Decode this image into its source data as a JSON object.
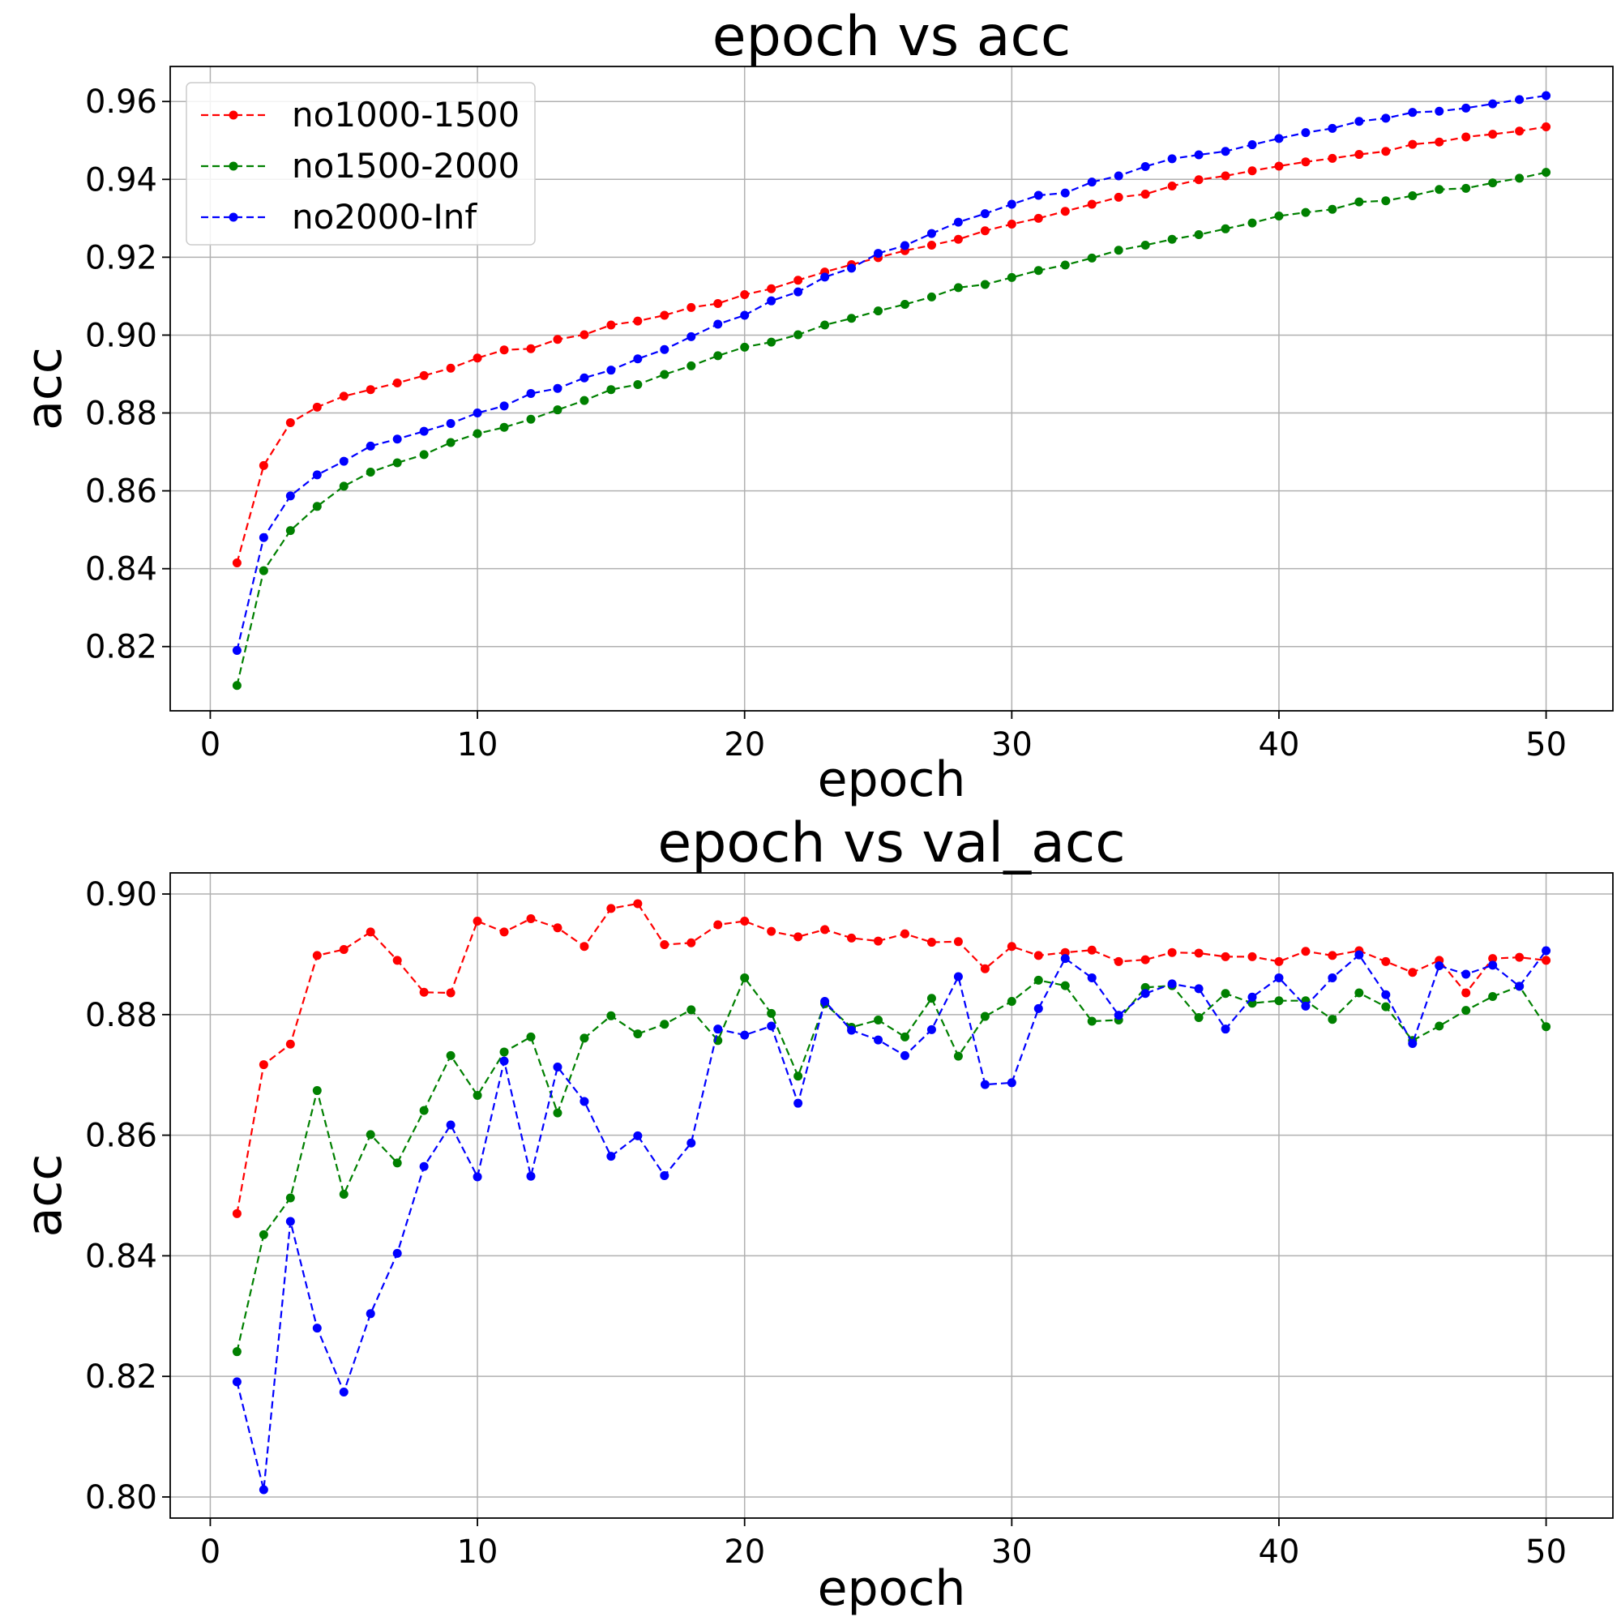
{
  "chart_data": [
    {
      "type": "line",
      "title": "epoch vs acc",
      "xlabel": "epoch",
      "ylabel": "acc",
      "xlim": [
        -1.5,
        52.5
      ],
      "ylim": [
        0.8035,
        0.969
      ],
      "xticks": [
        0,
        10,
        20,
        30,
        40,
        50
      ],
      "yticks": [
        0.82,
        0.84,
        0.86,
        0.88,
        0.9,
        0.92,
        0.94,
        0.96
      ],
      "grid": true,
      "legend_position": "top-left",
      "x": [
        1,
        2,
        3,
        4,
        5,
        6,
        7,
        8,
        9,
        10,
        11,
        12,
        13,
        14,
        15,
        16,
        17,
        18,
        19,
        20,
        21,
        22,
        23,
        24,
        25,
        26,
        27,
        28,
        29,
        30,
        31,
        32,
        33,
        34,
        35,
        36,
        37,
        38,
        39,
        40,
        41,
        42,
        43,
        44,
        45,
        46,
        47,
        48,
        49,
        50
      ],
      "series": [
        {
          "name": "no1000-1500",
          "color": "#ff0000",
          "values": [
            0.8415,
            0.8665,
            0.8775,
            0.8815,
            0.8843,
            0.886,
            0.8877,
            0.8896,
            0.8915,
            0.8941,
            0.8962,
            0.8965,
            0.8989,
            0.9001,
            0.9026,
            0.9036,
            0.9051,
            0.9071,
            0.9081,
            0.9104,
            0.9119,
            0.9141,
            0.9162,
            0.9181,
            0.9199,
            0.9217,
            0.9231,
            0.9246,
            0.9268,
            0.9285,
            0.93,
            0.9318,
            0.9336,
            0.9354,
            0.9362,
            0.9383,
            0.9399,
            0.9409,
            0.9422,
            0.9434,
            0.9445,
            0.9454,
            0.9464,
            0.9472,
            0.949,
            0.9496,
            0.9509,
            0.9516,
            0.9524,
            0.9535
          ]
        },
        {
          "name": "no1500-2000",
          "color": "#008000",
          "values": [
            0.81,
            0.8395,
            0.8498,
            0.856,
            0.8612,
            0.8648,
            0.8672,
            0.8693,
            0.8724,
            0.8747,
            0.8763,
            0.8784,
            0.8808,
            0.8832,
            0.886,
            0.8873,
            0.8899,
            0.8921,
            0.8947,
            0.8969,
            0.8982,
            0.9001,
            0.9026,
            0.9043,
            0.9062,
            0.9079,
            0.9098,
            0.9122,
            0.913,
            0.9148,
            0.9166,
            0.918,
            0.9198,
            0.9218,
            0.9231,
            0.9246,
            0.9258,
            0.9273,
            0.9288,
            0.9306,
            0.9315,
            0.9323,
            0.9342,
            0.9345,
            0.9358,
            0.9374,
            0.9377,
            0.9391,
            0.9403,
            0.9418
          ]
        },
        {
          "name": "no2000-Inf",
          "color": "#0000ff",
          "values": [
            0.819,
            0.848,
            0.8587,
            0.8641,
            0.8676,
            0.8715,
            0.8733,
            0.8753,
            0.8773,
            0.88,
            0.8818,
            0.885,
            0.8863,
            0.889,
            0.891,
            0.8939,
            0.8963,
            0.8996,
            0.9028,
            0.9051,
            0.9088,
            0.9111,
            0.9149,
            0.9172,
            0.921,
            0.923,
            0.9261,
            0.929,
            0.9312,
            0.9336,
            0.9359,
            0.9365,
            0.9393,
            0.9409,
            0.9433,
            0.9453,
            0.9463,
            0.9472,
            0.9489,
            0.9505,
            0.952,
            0.9531,
            0.9549,
            0.9557,
            0.9572,
            0.9575,
            0.9583,
            0.9594,
            0.9605,
            0.9615
          ]
        }
      ]
    },
    {
      "type": "line",
      "title": "epoch vs val_acc",
      "xlabel": "epoch",
      "ylabel": "acc",
      "xlim": [
        -1.5,
        52.5
      ],
      "ylim": [
        0.7965,
        0.9035
      ],
      "xticks": [
        0,
        10,
        20,
        30,
        40,
        50
      ],
      "yticks": [
        0.8,
        0.82,
        0.84,
        0.86,
        0.88,
        0.9
      ],
      "grid": true,
      "x": [
        1,
        2,
        3,
        4,
        5,
        6,
        7,
        8,
        9,
        10,
        11,
        12,
        13,
        14,
        15,
        16,
        17,
        18,
        19,
        20,
        21,
        22,
        23,
        24,
        25,
        26,
        27,
        28,
        29,
        30,
        31,
        32,
        33,
        34,
        35,
        36,
        37,
        38,
        39,
        40,
        41,
        42,
        43,
        44,
        45,
        46,
        47,
        48,
        49,
        50
      ],
      "series": [
        {
          "name": "no1000-1500",
          "color": "#ff0000",
          "values": [
            0.847,
            0.8717,
            0.8751,
            0.8898,
            0.8908,
            0.8937,
            0.889,
            0.8837,
            0.8836,
            0.8955,
            0.8937,
            0.8959,
            0.8944,
            0.8913,
            0.8976,
            0.8984,
            0.8916,
            0.8919,
            0.8949,
            0.8955,
            0.8938,
            0.8929,
            0.8941,
            0.8927,
            0.8922,
            0.8934,
            0.892,
            0.8921,
            0.8876,
            0.8913,
            0.8898,
            0.8903,
            0.8907,
            0.8888,
            0.8891,
            0.8903,
            0.8902,
            0.8896,
            0.8896,
            0.8888,
            0.8905,
            0.8898,
            0.8906,
            0.8888,
            0.887,
            0.889,
            0.8836,
            0.8893,
            0.8895,
            0.889
          ]
        },
        {
          "name": "no1500-2000",
          "color": "#008000",
          "values": [
            0.8241,
            0.8435,
            0.8496,
            0.8674,
            0.8502,
            0.8601,
            0.8554,
            0.8641,
            0.8732,
            0.8666,
            0.8738,
            0.8763,
            0.8637,
            0.8761,
            0.8798,
            0.8768,
            0.8784,
            0.8808,
            0.8757,
            0.8861,
            0.8802,
            0.8698,
            0.8818,
            0.8779,
            0.8791,
            0.8763,
            0.8827,
            0.8731,
            0.8797,
            0.8822,
            0.8857,
            0.8848,
            0.8789,
            0.8791,
            0.8845,
            0.8848,
            0.8795,
            0.8835,
            0.8819,
            0.8823,
            0.8823,
            0.8792,
            0.8836,
            0.8813,
            0.8757,
            0.8781,
            0.8807,
            0.883,
            0.8847,
            0.878
          ]
        },
        {
          "name": "no2000-Inf",
          "color": "#0000ff",
          "values": [
            0.8191,
            0.8012,
            0.8457,
            0.828,
            0.8174,
            0.8304,
            0.8404,
            0.8548,
            0.8617,
            0.8531,
            0.8723,
            0.8532,
            0.8713,
            0.8656,
            0.8565,
            0.8599,
            0.8533,
            0.8587,
            0.8776,
            0.8766,
            0.8781,
            0.8653,
            0.8822,
            0.8774,
            0.8758,
            0.8732,
            0.8775,
            0.8863,
            0.8684,
            0.8687,
            0.881,
            0.8893,
            0.8861,
            0.8799,
            0.8835,
            0.8851,
            0.8843,
            0.8776,
            0.8829,
            0.8861,
            0.8814,
            0.8861,
            0.8899,
            0.8833,
            0.8752,
            0.8881,
            0.8867,
            0.8882,
            0.8847,
            0.8906
          ]
        }
      ]
    }
  ]
}
